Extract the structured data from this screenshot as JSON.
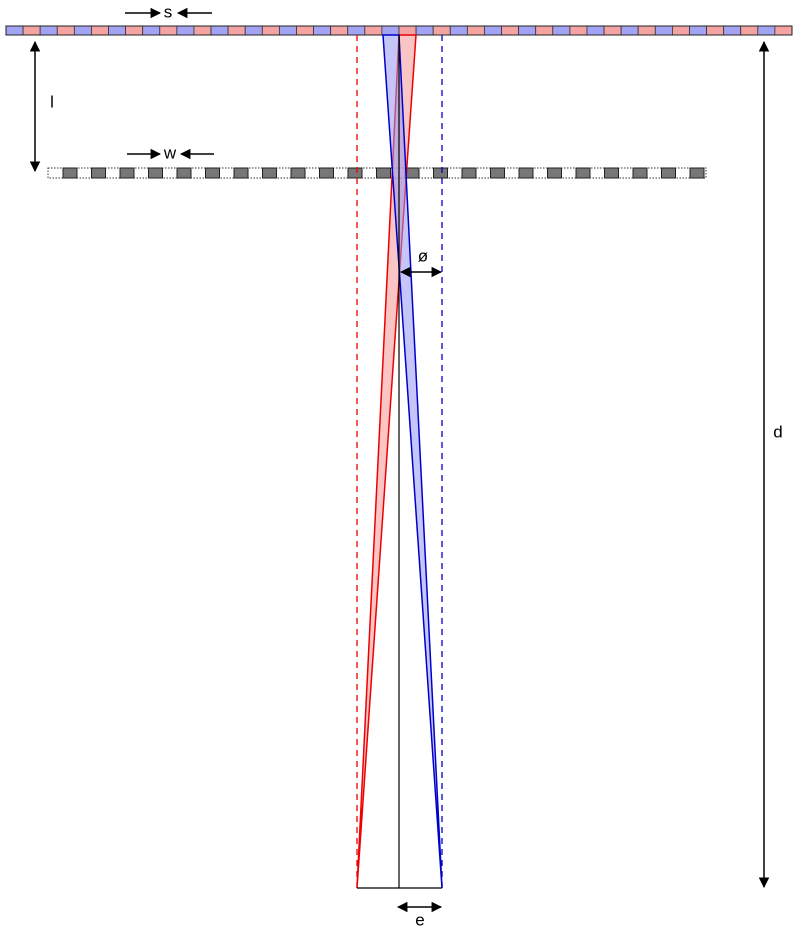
{
  "labels": {
    "s": "s",
    "l": "l",
    "w": "w",
    "phi": "ø",
    "d": "d",
    "e": "e"
  }
}
